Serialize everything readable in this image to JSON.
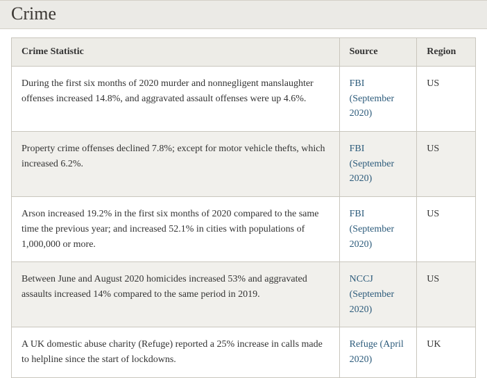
{
  "title": "Crime",
  "table": {
    "columns": [
      "Crime Statistic",
      "Source",
      "Region"
    ],
    "rows": [
      {
        "statistic": "During the first six months of 2020 murder and nonnegligent manslaughter offenses increased 14.8%, and aggravated assault offenses were up 4.6%.",
        "source": "FBI (September 2020)",
        "region": "US"
      },
      {
        "statistic": "Property crime offenses declined 7.8%; except for motor vehicle thefts, which increased 6.2%.",
        "source": "FBI (September 2020)",
        "region": "US"
      },
      {
        "statistic": "Arson increased 19.2% in the first six months of 2020 compared to the same time the previous year; and increased 52.1% in cities with populations of 1,000,000 or more.",
        "source": "FBI (September 2020)",
        "region": "US"
      },
      {
        "statistic": "Between June and August 2020 homicides increased 53% and aggravated assaults increased 14% compared to the same period in 2019.",
        "source": "NCCJ (September 2020)",
        "region": "US"
      },
      {
        "statistic": "A UK domestic abuse charity (Refuge) reported a 25% increase in calls made to helpline since the start of lockdowns.",
        "source": "Refuge (April 2020)",
        "region": "UK"
      }
    ]
  },
  "styling": {
    "title_color": "#3a3632",
    "header_bg": "#ebeae6",
    "th_bg": "#edece7",
    "row_even_bg": "#f1f0ec",
    "row_odd_bg": "#ffffff",
    "border_color": "#c9c6bd",
    "link_color": "#2b5a7a",
    "font_family": "Georgia, serif",
    "title_fontsize": 26,
    "body_fontsize": 14
  }
}
